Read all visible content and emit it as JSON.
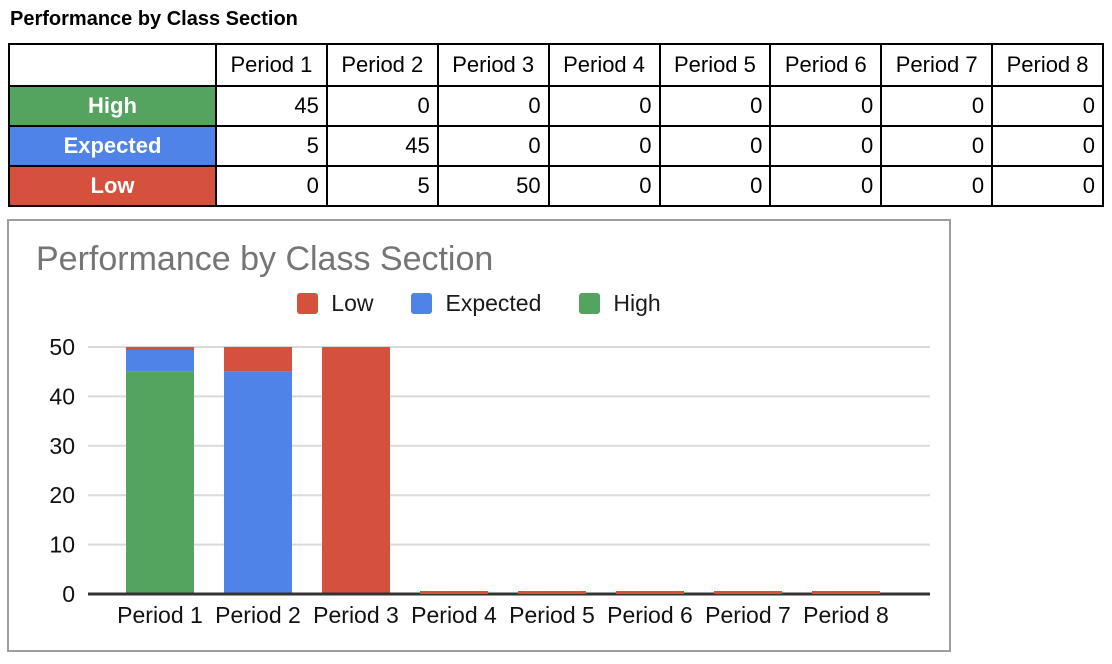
{
  "page_title": "Performance by Class Section",
  "table": {
    "corner_label": "",
    "columns": [
      "Period 1",
      "Period 2",
      "Period 3",
      "Period 4",
      "Period 5",
      "Period 6",
      "Period 7",
      "Period 8"
    ],
    "rows": [
      {
        "label": "High",
        "color": "#54a35e",
        "values": [
          45,
          0,
          0,
          0,
          0,
          0,
          0,
          0
        ]
      },
      {
        "label": "Expected",
        "color": "#4f83e8",
        "values": [
          5,
          45,
          0,
          0,
          0,
          0,
          0,
          0
        ]
      },
      {
        "label": "Low",
        "color": "#d6503e",
        "values": [
          0,
          5,
          50,
          0,
          0,
          0,
          0,
          0
        ]
      }
    ]
  },
  "chart_data": {
    "type": "bar",
    "stacked": true,
    "title": "Performance by Class Section",
    "title_color": "#757575",
    "categories": [
      "Period 1",
      "Period 2",
      "Period 3",
      "Period 4",
      "Period 5",
      "Period 6",
      "Period 7",
      "Period 8"
    ],
    "series": [
      {
        "name": "High",
        "color": "#54a35e",
        "values": [
          45,
          0,
          0,
          0,
          0,
          0,
          0,
          0
        ]
      },
      {
        "name": "Expected",
        "color": "#4f83e8",
        "values": [
          5,
          45,
          0,
          0,
          0,
          0,
          0,
          0
        ]
      },
      {
        "name": "Low",
        "color": "#d6503e",
        "values": [
          0,
          5,
          50,
          0,
          0,
          0,
          0,
          0
        ]
      }
    ],
    "legend": {
      "position": "top",
      "items": [
        {
          "label": "Low",
          "color": "#d6503e"
        },
        {
          "label": "Expected",
          "color": "#4f83e8"
        },
        {
          "label": "High",
          "color": "#54a35e"
        }
      ]
    },
    "xlabel": "",
    "ylabel": "",
    "ylim": [
      0,
      50
    ],
    "yticks": [
      0,
      10,
      20,
      30,
      40,
      50
    ],
    "grid": true,
    "grid_color": "#d9d9d9",
    "baseline_color": "#333333"
  }
}
